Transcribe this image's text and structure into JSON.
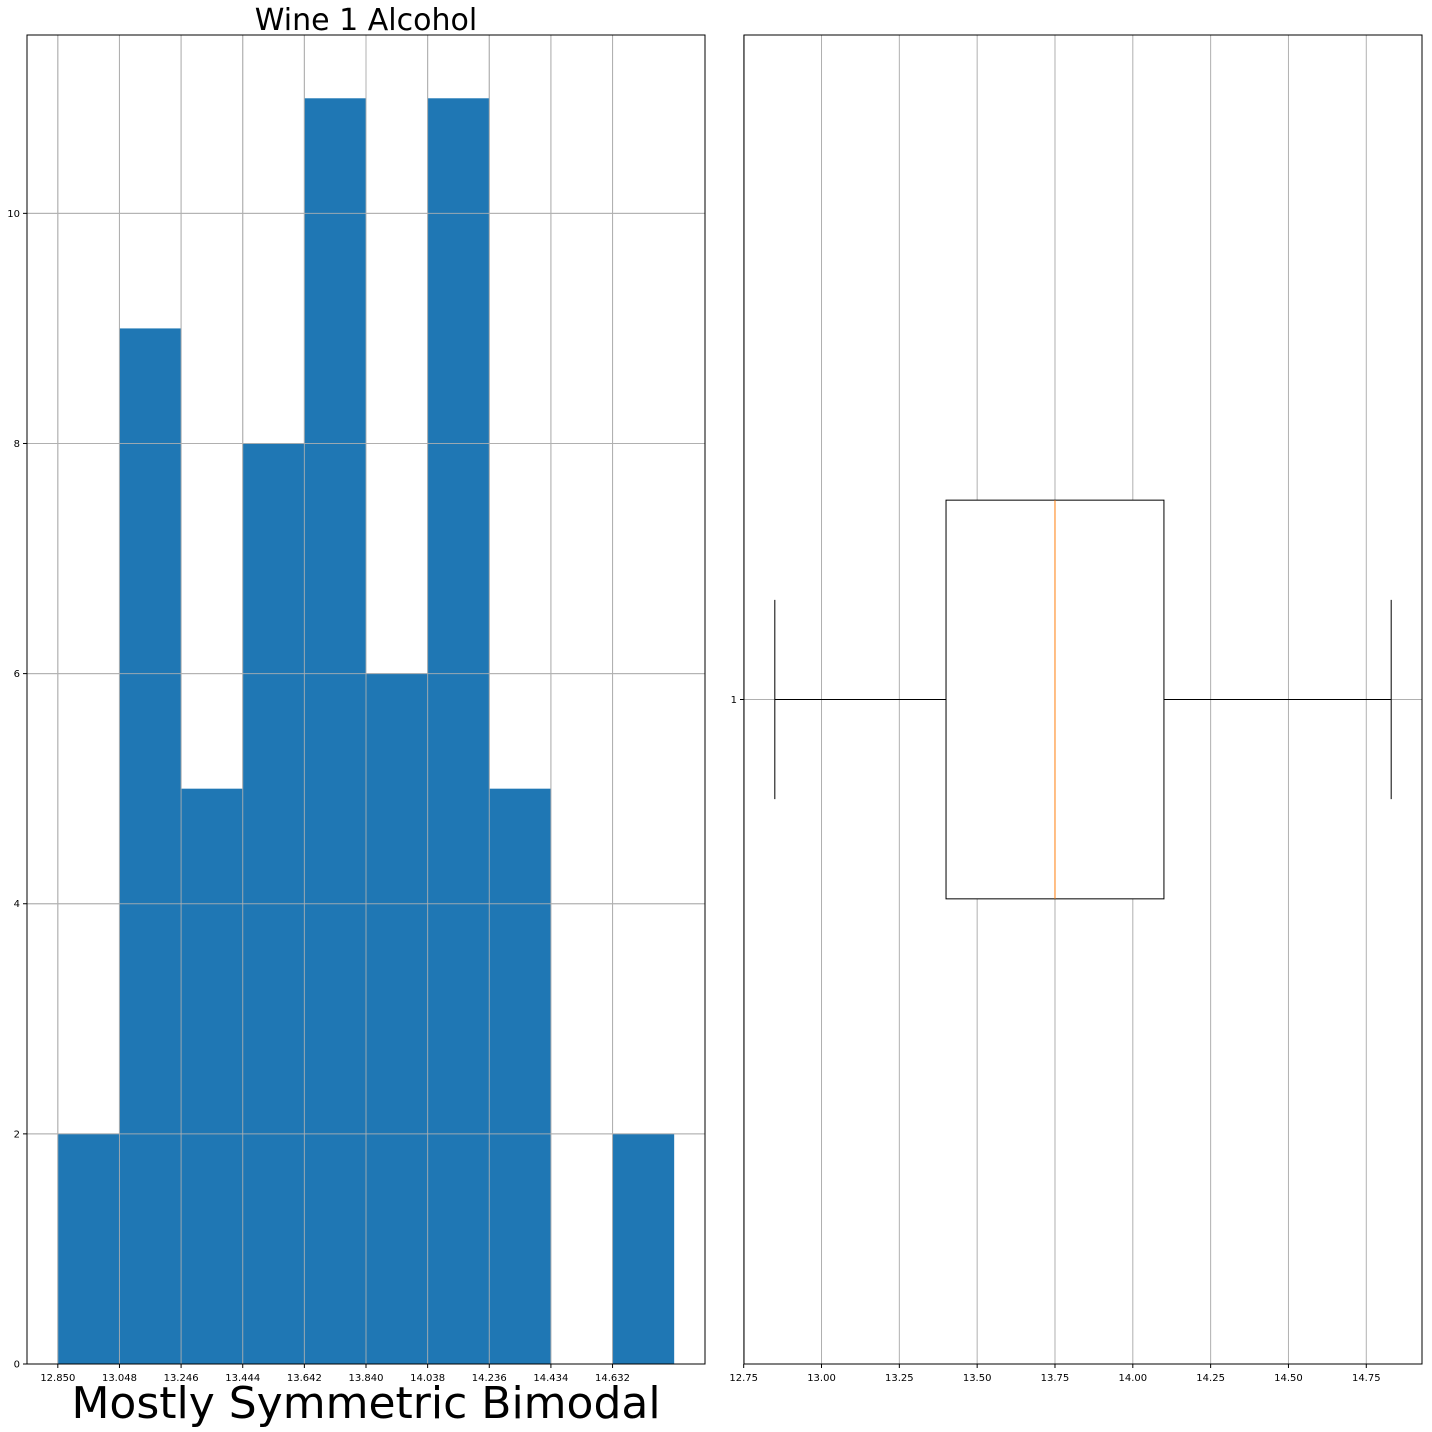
{
  "chart_data": [
    {
      "type": "bar",
      "subtype": "histogram",
      "title": "Wine 1 Alcohol",
      "xlabel": "Mostly Symmetric Bimodal",
      "ylabel": "",
      "bin_edges": [
        12.85,
        13.048,
        13.246,
        13.444,
        13.642,
        13.84,
        14.038,
        14.236,
        14.434,
        14.632,
        14.83
      ],
      "values": [
        2,
        9,
        5,
        8,
        11,
        6,
        11,
        5,
        0,
        2
      ],
      "xticks": [
        "12.850",
        "13.048",
        "13.246",
        "13.444",
        "13.642",
        "13.840",
        "14.038",
        "14.236",
        "14.434",
        "14.632"
      ],
      "yticks": [
        "0",
        "2",
        "4",
        "6",
        "8",
        "10"
      ],
      "xlim": [
        12.751,
        14.929
      ],
      "ylim": [
        0,
        11.55
      ],
      "grid": true,
      "colors": {
        "bar": "#1f77b4"
      }
    },
    {
      "type": "boxplot",
      "orientation": "horizontal",
      "title": "",
      "xlabel": "",
      "ylabel": "",
      "category": "1",
      "stats": {
        "whisker_low": 12.85,
        "q1": 13.4,
        "median": 13.75,
        "q3": 14.1,
        "whisker_high": 14.83
      },
      "xticks": [
        "12.75",
        "13.00",
        "13.25",
        "13.50",
        "13.75",
        "14.00",
        "14.25",
        "14.50",
        "14.75"
      ],
      "yticks": [
        "1"
      ],
      "xlim": [
        12.751,
        14.929
      ],
      "ylim": [
        0.5,
        1.5
      ],
      "grid": true,
      "colors": {
        "median": "#ff7f0e",
        "box": "#000000"
      }
    }
  ]
}
